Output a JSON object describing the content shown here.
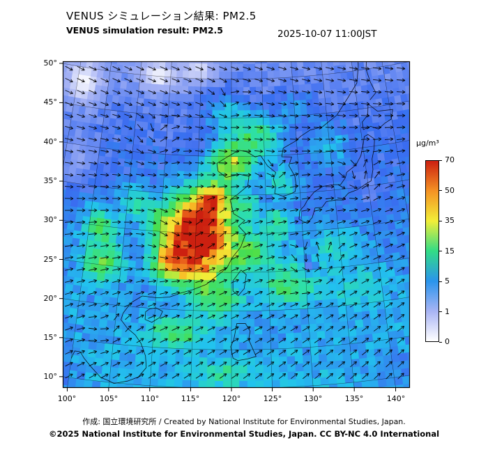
{
  "header": {
    "title_jp": "VENUS シミュレーション結果: PM2.5",
    "title_en": "VENUS simulation result: PM2.5",
    "timestamp": "2025-10-07 11:00JST"
  },
  "footer": {
    "credit": "作成: 国立環境研究所 / Created by National Institute for Environmental Studies, Japan.",
    "license": "©2025 National Institute for Environmental Studies, Japan. CC BY-NC 4.0 International"
  },
  "colorbar": {
    "unit": "µg/m³",
    "ticks": [
      0,
      1,
      5,
      15,
      35,
      50,
      70
    ],
    "tick_colors": [
      "#ffffff",
      "#a8b4f4",
      "#2a94ec",
      "#32dc86",
      "#f2ee38",
      "#f49224",
      "#cc2010"
    ]
  },
  "chart_data": {
    "type": "heatmap",
    "title": "VENUS simulation result: PM2.5",
    "subtitle_jp": "VENUS シミュレーション結果: PM2.5",
    "valid_time": "2025-10-07 11:00JST",
    "units": "µg/m³",
    "lon_range": [
      100,
      140
    ],
    "lat_range": [
      10,
      50
    ],
    "lon_ticks": [
      100,
      105,
      110,
      115,
      120,
      125,
      130,
      135,
      140
    ],
    "lat_ticks": [
      10,
      15,
      20,
      25,
      30,
      35,
      40,
      45,
      50
    ],
    "levels": [
      0,
      1,
      5,
      15,
      35,
      50,
      70
    ],
    "legend_position": "right",
    "colormap": [
      [
        0,
        "#ffffff"
      ],
      [
        1,
        "#a8b4f4"
      ],
      [
        4,
        "#3a6cf0"
      ],
      [
        8,
        "#22c2ee"
      ],
      [
        14,
        "#2ee0a6"
      ],
      [
        22,
        "#4ade4a"
      ],
      [
        35,
        "#f2ee38"
      ],
      [
        46,
        "#f8b424"
      ],
      [
        56,
        "#ee6a1c"
      ],
      [
        70,
        "#cc2010"
      ]
    ],
    "base_level": {
      "value_at_lat8": 7.5,
      "per_deg": -0.115
    },
    "plumes": [
      [
        115.5,
        29.5,
        3.8,
        4.5,
        90
      ],
      [
        112.0,
        26.5,
        2.2,
        2.0,
        35
      ],
      [
        117.5,
        34.5,
        2.0,
        1.7,
        32
      ],
      [
        120.0,
        39.0,
        2.8,
        2.2,
        24
      ],
      [
        123.5,
        42.5,
        3.5,
        2.5,
        14
      ],
      [
        102.5,
        25.5,
        2.4,
        2.4,
        16
      ],
      [
        101.5,
        30.0,
        2.0,
        2.2,
        13
      ],
      [
        106.0,
        33.5,
        2.0,
        2.0,
        8
      ],
      [
        109.5,
        31.5,
        1.8,
        1.6,
        12
      ],
      [
        113.0,
        17.0,
        3.5,
        1.8,
        12
      ],
      [
        119.0,
        12.0,
        3.0,
        1.5,
        8
      ],
      [
        118.5,
        21.5,
        2.5,
        2.0,
        14
      ],
      [
        123.0,
        27.5,
        2.5,
        2.5,
        14
      ],
      [
        122.5,
        33.5,
        1.8,
        1.8,
        9
      ],
      [
        128.0,
        23.5,
        3.5,
        2.5,
        13
      ],
      [
        130.5,
        25.3,
        1.3,
        1.3,
        -6.5
      ],
      [
        126.5,
        31.0,
        2.0,
        2.0,
        10
      ],
      [
        127.5,
        36.5,
        2.0,
        2.0,
        8
      ],
      [
        134.0,
        28.0,
        3.0,
        2.5,
        6
      ],
      [
        137.0,
        22.0,
        3.5,
        2.5,
        5
      ],
      [
        135.0,
        41.0,
        3.0,
        2.5,
        4
      ],
      [
        130.0,
        46.0,
        3.0,
        2.0,
        3
      ],
      [
        119.0,
        45.5,
        3.0,
        2.5,
        5
      ],
      [
        140.0,
        34.5,
        2.0,
        2.0,
        -1.5
      ],
      [
        96.0,
        48.0,
        4.0,
        3.5,
        -2.8
      ],
      [
        108.0,
        50.0,
        4.0,
        2.5,
        -2.5
      ],
      [
        115.0,
        51.0,
        3.0,
        2.0,
        -2.0
      ],
      [
        97.0,
        38.0,
        3.0,
        4.0,
        -2.2
      ],
      [
        95.0,
        10.0,
        5.0,
        3.5,
        -5.5
      ],
      [
        141.0,
        11.0,
        4.0,
        2.5,
        -2.2
      ]
    ],
    "wind": {
      "background": {
        "u": 0.75,
        "v_at_lat10": 0.55,
        "v_per_deg": -0.02
      },
      "vortices": [
        [
          131.3,
          25.3,
          2.4,
          2.8
        ],
        [
          138.8,
          35.6,
          2.0,
          2.4
        ],
        [
          126.3,
          37.6,
          1.5,
          1.8
        ],
        [
          108.5,
          41.5,
          1.5,
          2.8
        ],
        [
          119.5,
          46.5,
          1.3,
          2.4
        ],
        [
          114.5,
          29.5,
          1.1,
          4.8
        ],
        [
          104.5,
          16.5,
          1.1,
          2.4
        ]
      ]
    },
    "coastlines": [
      {
        "name": "china-coast",
        "path": [
          [
            108.2,
            21.5
          ],
          [
            110.2,
            21.4
          ],
          [
            111.8,
            21.6
          ],
          [
            113.3,
            22.2
          ],
          [
            114.9,
            22.7
          ],
          [
            116.6,
            23.4
          ],
          [
            118.1,
            24.6
          ],
          [
            119.4,
            25.6
          ],
          [
            120.1,
            26.9
          ],
          [
            121.3,
            28.3
          ],
          [
            122.0,
            30.0
          ],
          [
            121.0,
            31.0
          ],
          [
            121.9,
            31.7
          ],
          [
            120.3,
            32.6
          ],
          [
            119.8,
            34.4
          ],
          [
            120.9,
            35.1
          ],
          [
            122.4,
            36.2
          ],
          [
            122.6,
            37.4
          ],
          [
            121.2,
            37.7
          ],
          [
            119.2,
            37.3
          ],
          [
            118.0,
            38.1
          ],
          [
            117.8,
            39.1
          ],
          [
            119.3,
            39.9
          ],
          [
            121.1,
            40.8
          ],
          [
            122.3,
            40.6
          ],
          [
            123.6,
            39.9
          ],
          [
            124.4,
            40.1
          ]
        ]
      },
      {
        "name": "korea",
        "path": [
          [
            124.4,
            40.1
          ],
          [
            125.4,
            38.7
          ],
          [
            126.6,
            37.8
          ],
          [
            126.2,
            37.0
          ],
          [
            126.5,
            36.0
          ],
          [
            126.3,
            35.1
          ],
          [
            127.5,
            34.7
          ],
          [
            128.5,
            34.9
          ],
          [
            129.3,
            35.2
          ],
          [
            129.5,
            36.1
          ],
          [
            129.4,
            37.2
          ],
          [
            128.6,
            38.6
          ],
          [
            129.1,
            39.7
          ],
          [
            127.6,
            39.8
          ],
          [
            127.9,
            40.9
          ],
          [
            129.8,
            41.7
          ],
          [
            130.7,
            42.3
          ]
        ]
      },
      {
        "name": "japan-honshu-kyushu",
        "path": [
          [
            129.6,
            31.6
          ],
          [
            130.7,
            31.0
          ],
          [
            131.5,
            31.7
          ],
          [
            132.0,
            32.9
          ],
          [
            133.0,
            32.9
          ],
          [
            133.7,
            33.6
          ],
          [
            135.2,
            33.7
          ],
          [
            136.0,
            33.6
          ],
          [
            137.0,
            34.4
          ],
          [
            138.3,
            34.7
          ],
          [
            139.0,
            35.0
          ],
          [
            139.9,
            35.4
          ],
          [
            140.5,
            35.6
          ],
          [
            141.0,
            37.0
          ],
          [
            141.1,
            38.4
          ],
          [
            141.6,
            39.6
          ],
          [
            141.9,
            40.9
          ],
          [
            141.0,
            41.6
          ],
          [
            140.4,
            41.4
          ],
          [
            140.1,
            40.5
          ],
          [
            139.5,
            39.0
          ],
          [
            138.6,
            37.9
          ],
          [
            137.1,
            37.1
          ],
          [
            136.8,
            36.4
          ],
          [
            136.0,
            35.6
          ],
          [
            134.9,
            35.7
          ],
          [
            133.4,
            35.6
          ],
          [
            132.1,
            35.0
          ],
          [
            131.0,
            34.0
          ],
          [
            130.5,
            33.3
          ],
          [
            129.8,
            32.7
          ],
          [
            129.6,
            31.6
          ]
        ]
      },
      {
        "name": "hokkaido",
        "path": [
          [
            140.4,
            42.3
          ],
          [
            141.6,
            42.6
          ],
          [
            142.7,
            42.1
          ],
          [
            143.8,
            42.7
          ],
          [
            144.9,
            43.1
          ],
          [
            145.4,
            44.3
          ],
          [
            143.0,
            44.4
          ],
          [
            141.7,
            45.5
          ],
          [
            141.4,
            44.1
          ],
          [
            140.4,
            43.3
          ],
          [
            140.4,
            42.3
          ]
        ]
      },
      {
        "name": "taiwan",
        "path": [
          [
            120.2,
            22.6
          ],
          [
            120.9,
            22.0
          ],
          [
            121.7,
            22.9
          ],
          [
            122.0,
            24.7
          ],
          [
            121.3,
            25.3
          ],
          [
            120.2,
            23.9
          ],
          [
            120.2,
            22.6
          ]
        ]
      },
      {
        "name": "hainan",
        "path": [
          [
            108.8,
            18.5
          ],
          [
            109.7,
            18.2
          ],
          [
            110.7,
            18.9
          ],
          [
            111.0,
            19.7
          ],
          [
            110.1,
            20.1
          ],
          [
            109.3,
            19.9
          ],
          [
            108.8,
            19.5
          ],
          [
            108.8,
            18.5
          ]
        ]
      },
      {
        "name": "indochina",
        "path": [
          [
            108.2,
            21.5
          ],
          [
            106.8,
            20.5
          ],
          [
            105.9,
            19.1
          ],
          [
            105.7,
            18.2
          ],
          [
            106.6,
            17.2
          ],
          [
            107.7,
            16.4
          ],
          [
            108.5,
            15.4
          ],
          [
            109.2,
            13.8
          ],
          [
            109.4,
            12.3
          ],
          [
            108.5,
            11.0
          ],
          [
            107.3,
            10.4
          ],
          [
            105.6,
            9.9
          ],
          [
            104.9,
            10.2
          ],
          [
            103.9,
            10.5
          ],
          [
            102.6,
            11.7
          ],
          [
            101.6,
            12.7
          ],
          [
            101.0,
            13.5
          ],
          [
            100.3,
            13.5
          ],
          [
            100.0,
            12.5
          ]
        ]
      },
      {
        "name": "luzon",
        "path": [
          [
            120.2,
            13.9
          ],
          [
            119.9,
            15.4
          ],
          [
            120.3,
            16.3
          ],
          [
            120.7,
            18.4
          ],
          [
            121.8,
            18.4
          ],
          [
            122.4,
            17.4
          ],
          [
            122.2,
            16.3
          ],
          [
            123.1,
            14.1
          ],
          [
            122.0,
            13.8
          ],
          [
            120.8,
            13.6
          ],
          [
            120.2,
            13.9
          ]
        ]
      },
      {
        "name": "primorye",
        "path": [
          [
            130.7,
            42.3
          ],
          [
            132.2,
            43.0
          ],
          [
            134.2,
            43.3
          ],
          [
            136.6,
            44.6
          ],
          [
            138.6,
            46.6
          ],
          [
            140.4,
            48.4
          ],
          [
            141.0,
            50.5
          ],
          [
            141.3,
            52.5
          ]
        ]
      },
      {
        "name": "sakhalin",
        "path": [
          [
            142.1,
            46.0
          ],
          [
            143.2,
            46.8
          ],
          [
            142.6,
            48.2
          ],
          [
            142.2,
            50.0
          ],
          [
            142.6,
            51.5
          ],
          [
            141.9,
            53.0
          ]
        ]
      }
    ]
  }
}
